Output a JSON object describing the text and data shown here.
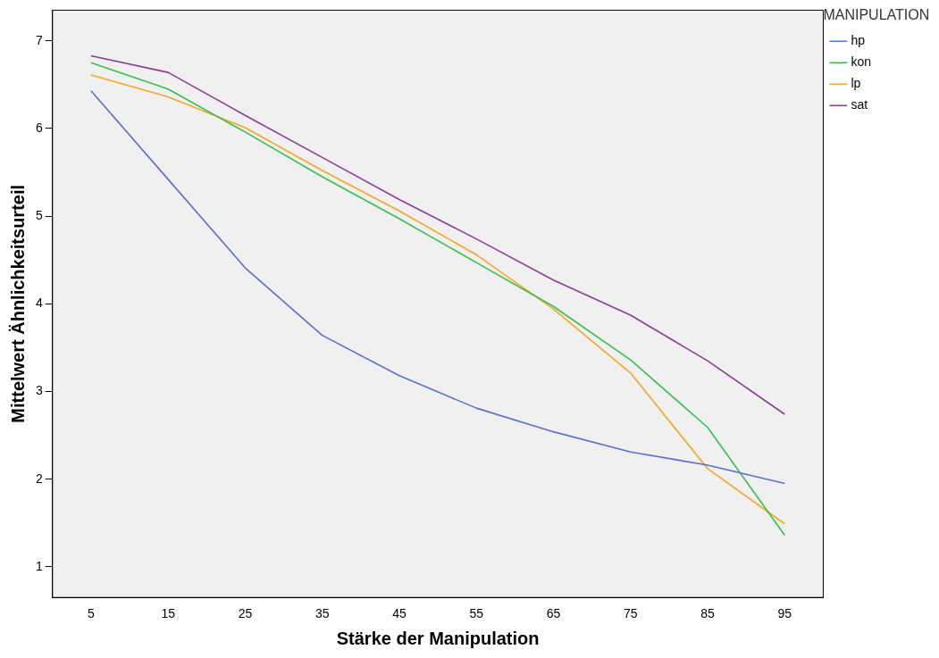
{
  "chart_data": {
    "type": "line",
    "xlabel": "Stärke der Manipulation",
    "ylabel": "Mittelwert Ähnlichkeitsurteil",
    "legend_title": "MANIPULATION",
    "legend": "top right",
    "marker": "none",
    "line_style": "solid",
    "grid": false,
    "categories": [
      "5",
      "15",
      "25",
      "35",
      "45",
      "55",
      "65",
      "75",
      "85",
      "95"
    ],
    "ylim": [
      0.65,
      7.35
    ],
    "yticks": [
      1,
      2,
      3,
      4,
      5,
      6,
      7
    ],
    "series": [
      {
        "name": "hp",
        "color": "#5b6fd0",
        "values": [
          6.43,
          5.42,
          4.41,
          3.64,
          3.18,
          2.81,
          2.54,
          2.31,
          2.16,
          1.95
        ]
      },
      {
        "name": "kon",
        "color": "#33c14d",
        "values": [
          6.75,
          6.45,
          5.96,
          5.45,
          4.97,
          4.47,
          3.97,
          3.36,
          2.59,
          1.36
        ]
      },
      {
        "name": "lp",
        "color": "#f5a623",
        "values": [
          6.61,
          6.36,
          6.01,
          5.52,
          5.06,
          4.56,
          3.94,
          3.21,
          2.12,
          1.49
        ]
      },
      {
        "name": "sat",
        "color": "#8e3a9e",
        "values": [
          6.83,
          6.64,
          6.15,
          5.67,
          5.19,
          4.74,
          4.27,
          3.87,
          3.35,
          2.74
        ]
      }
    ]
  }
}
